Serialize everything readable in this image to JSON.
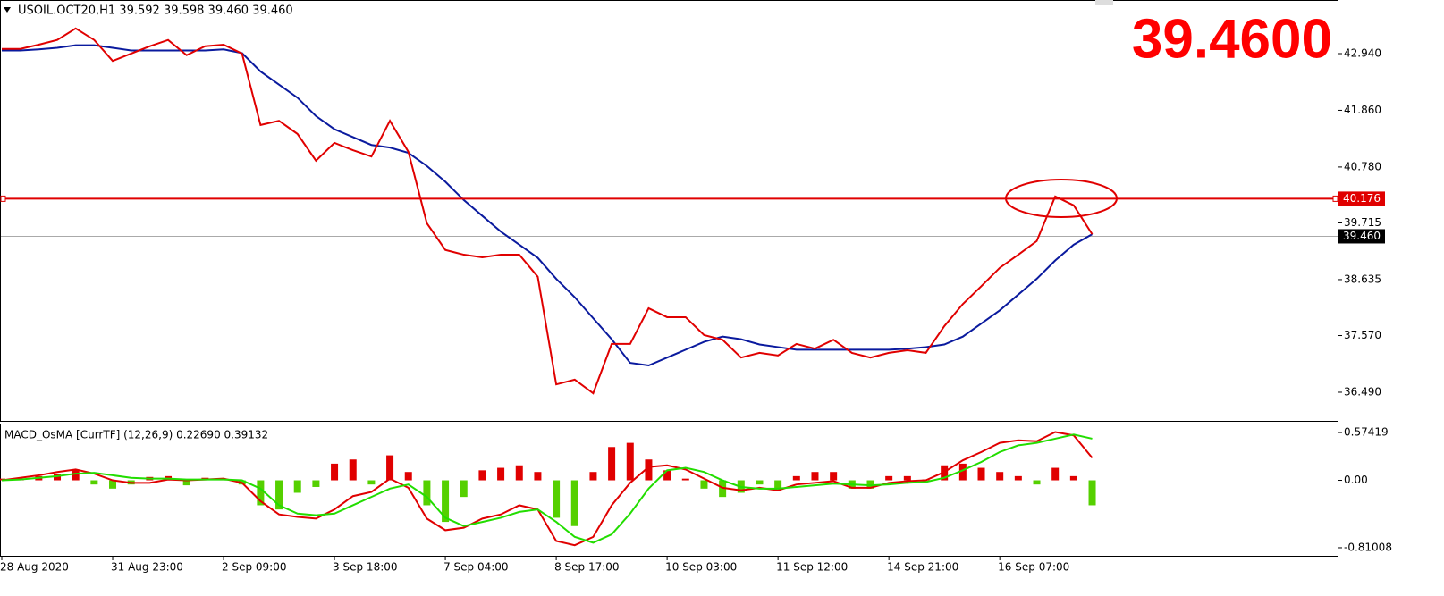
{
  "chart_data": [
    {
      "type": "line",
      "title": "USOIL.OCT20,H1  39.592 39.598 39.460 39.460",
      "annotation": "39.4600",
      "categories": [
        "28 Aug 2020",
        null,
        null,
        null,
        null,
        null,
        "31 Aug 23:00",
        null,
        null,
        null,
        null,
        null,
        "2 Sep 09:00",
        null,
        null,
        null,
        null,
        null,
        "3 Sep 18:00",
        null,
        null,
        null,
        null,
        null,
        "7 Sep 04:00",
        null,
        null,
        null,
        null,
        null,
        "8 Sep 17:00",
        null,
        null,
        null,
        null,
        null,
        "10 Sep 03:00",
        null,
        null,
        null,
        null,
        null,
        "11 Sep 12:00",
        null,
        null,
        null,
        null,
        null,
        "14 Sep 21:00",
        null,
        null,
        null,
        null,
        null,
        "16 Sep 07:00",
        null,
        null,
        null,
        null,
        null
      ],
      "series": [
        {
          "color": "#e00000",
          "values": [
            43.03,
            43.03,
            43.11,
            43.2,
            43.42,
            43.2,
            42.8,
            42.94,
            43.08,
            43.2,
            42.91,
            43.08,
            43.11,
            42.94,
            41.58,
            41.66,
            41.41,
            40.9,
            41.24,
            41.1,
            40.98,
            41.66,
            41.07,
            39.71,
            39.2,
            39.11,
            39.06,
            39.11,
            39.11,
            38.69,
            36.64,
            36.73,
            36.47,
            37.41,
            37.41,
            38.09,
            37.92,
            37.92,
            37.58,
            37.49,
            37.15,
            37.24,
            37.19,
            37.41,
            37.32,
            37.49,
            37.24,
            37.15,
            37.24,
            37.29,
            37.24,
            37.75,
            38.17,
            38.51,
            38.86,
            39.11,
            39.37,
            40.22,
            40.05,
            39.5
          ]
        },
        {
          "color": "#0a1a9e",
          "values": [
            43.0,
            43.0,
            43.02,
            43.05,
            43.1,
            43.1,
            43.05,
            43.0,
            43.0,
            43.0,
            43.0,
            43.0,
            43.02,
            42.95,
            42.6,
            42.35,
            42.1,
            41.75,
            41.5,
            41.35,
            41.2,
            41.15,
            41.05,
            40.8,
            40.5,
            40.15,
            39.85,
            39.55,
            39.3,
            39.05,
            38.65,
            38.3,
            37.9,
            37.5,
            37.05,
            37.0,
            37.15,
            37.3,
            37.45,
            37.55,
            37.5,
            37.4,
            37.35,
            37.3,
            37.3,
            37.3,
            37.3,
            37.3,
            37.3,
            37.32,
            37.35,
            37.4,
            37.55,
            37.8,
            38.05,
            38.35,
            38.65,
            39.0,
            39.3,
            39.5
          ]
        }
      ],
      "ylim": [
        35.928,
        43.961
      ],
      "yticks": [
        {
          "value": 42.94,
          "label": "42.940"
        },
        {
          "value": 41.86,
          "label": "41.860"
        },
        {
          "value": 40.78,
          "label": "40.780"
        },
        39.715,
        38.635,
        {
          "value": 37.57,
          "label": "37.570"
        },
        {
          "value": 36.49,
          "label": "36.490"
        }
      ],
      "level": 40.176,
      "level_color": "#e00000",
      "current": {
        "value": 39.46,
        "label": "39.460"
      }
    },
    {
      "type": "bar",
      "title": "MACD_OsMA [CurrTF] (12,26,9) 0.22690 0.39132",
      "values": [
        0.02,
        0.02,
        0.05,
        0.08,
        0.12,
        -0.05,
        -0.1,
        -0.05,
        0.04,
        0.05,
        -0.06,
        0.03,
        0.02,
        -0.05,
        -0.3,
        -0.35,
        -0.15,
        -0.08,
        0.2,
        0.25,
        -0.05,
        0.3,
        0.1,
        -0.3,
        -0.5,
        -0.2,
        0.12,
        0.15,
        0.18,
        0.1,
        -0.45,
        -0.55,
        0.1,
        0.4,
        0.45,
        0.25,
        0.12,
        0.02,
        -0.1,
        -0.2,
        -0.15,
        -0.05,
        -0.1,
        0.05,
        0.1,
        0.1,
        -0.1,
        -0.1,
        0.05,
        0.05,
        0.01,
        0.18,
        0.2,
        0.15,
        0.1,
        0.05,
        -0.05,
        0.15,
        0.05,
        -0.3
      ],
      "up_color": "#e00000",
      "down_color": "#55d000",
      "series": [
        {
          "color": "#e00000",
          "values": [
            0,
            0.03,
            0.06,
            0.1,
            0.13,
            0.08,
            0.0,
            -0.03,
            -0.03,
            0.01,
            0.0,
            0.01,
            0.02,
            -0.03,
            -0.25,
            -0.41,
            -0.44,
            -0.46,
            -0.35,
            -0.19,
            -0.14,
            0.02,
            -0.09,
            -0.46,
            -0.6,
            -0.57,
            -0.46,
            -0.41,
            -0.3,
            -0.35,
            -0.73,
            -0.78,
            -0.68,
            -0.3,
            -0.03,
            0.16,
            0.18,
            0.13,
            0.02,
            -0.09,
            -0.12,
            -0.09,
            -0.12,
            -0.05,
            -0.03,
            -0.01,
            -0.09,
            -0.09,
            -0.03,
            -0.01,
            0.0,
            0.1,
            0.24,
            0.34,
            0.45,
            0.48,
            0.47,
            0.58,
            0.54,
            0.27
          ]
        },
        {
          "color": "#22dd00",
          "values": [
            0,
            0.01,
            0.03,
            0.05,
            0.08,
            0.09,
            0.06,
            0.03,
            0.02,
            0.02,
            0.01,
            0.01,
            0.01,
            0.0,
            -0.1,
            -0.3,
            -0.4,
            -0.42,
            -0.4,
            -0.3,
            -0.2,
            -0.1,
            -0.05,
            -0.2,
            -0.45,
            -0.55,
            -0.5,
            -0.45,
            -0.38,
            -0.35,
            -0.5,
            -0.68,
            -0.75,
            -0.65,
            -0.4,
            -0.1,
            0.12,
            0.15,
            0.1,
            0.0,
            -0.08,
            -0.1,
            -0.1,
            -0.08,
            -0.06,
            -0.04,
            -0.05,
            -0.06,
            -0.05,
            -0.03,
            -0.02,
            0.03,
            0.12,
            0.22,
            0.34,
            0.42,
            0.45,
            0.5,
            0.55,
            0.5
          ]
        }
      ],
      "ylim": [
        -0.907,
        0.682
      ],
      "yticks": [
        0.57419,
        {
          "value": 0,
          "label": "0.00"
        },
        -0.81008
      ]
    }
  ]
}
